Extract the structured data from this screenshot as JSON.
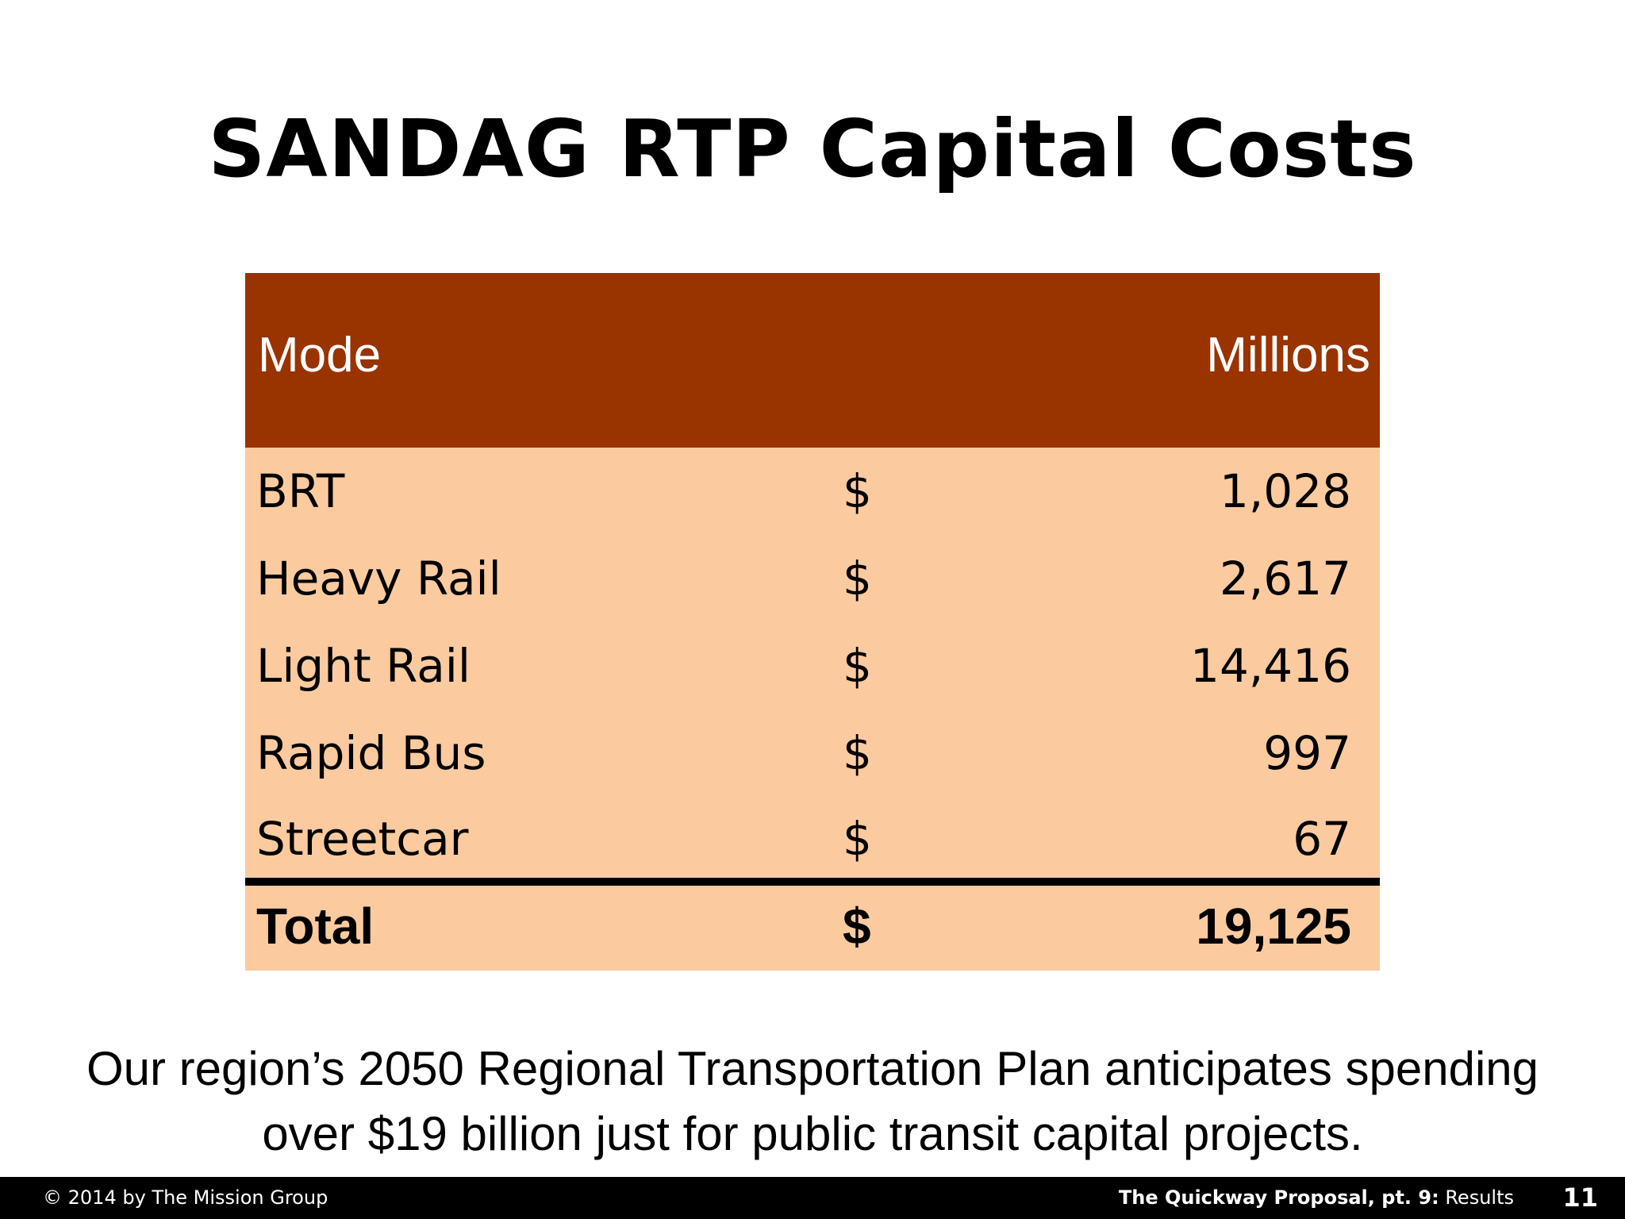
{
  "slide": {
    "title": "SANDAG RTP Capital Costs",
    "caption_line1": "Our region’s 2050 Regional Transportation Plan anticipates spending",
    "caption_line2": "over $19 billion just for public transit capital projects."
  },
  "table": {
    "header_mode": "Mode",
    "header_millions": "Millions",
    "rows": [
      {
        "mode": "BRT",
        "currency": "$",
        "value": "1,028"
      },
      {
        "mode": "Heavy Rail",
        "currency": "$",
        "value": "2,617"
      },
      {
        "mode": "Light Rail",
        "currency": "$",
        "value": "14,416"
      },
      {
        "mode": "Rapid Bus",
        "currency": "$",
        "value": "997"
      },
      {
        "mode": "Streetcar",
        "currency": "$",
        "value": "67"
      }
    ],
    "total": {
      "mode": "Total",
      "currency": "$",
      "value": "19,125"
    }
  },
  "footer": {
    "copyright": "© 2014 by The Mission Group",
    "deck_title": "The Quickway Proposal, pt. 9:",
    "section": "Results",
    "page_number": "11"
  },
  "colors": {
    "header_bg": "#993300",
    "body_bg": "#fbcb9f",
    "footer_bg": "#000000"
  }
}
